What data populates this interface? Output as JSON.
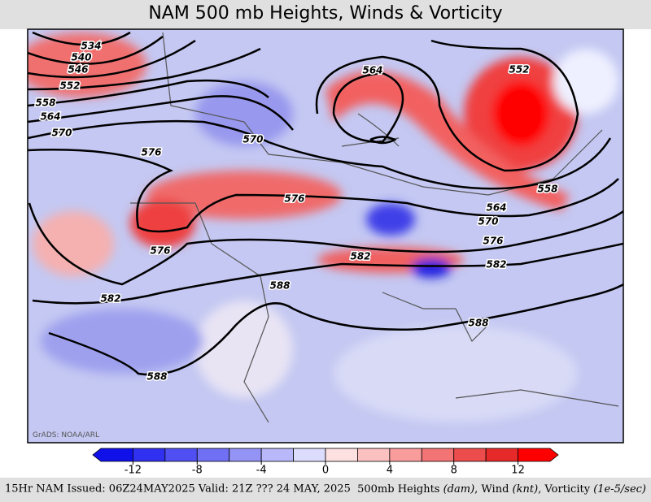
{
  "header": {
    "title": "NAM 500 mb Heights, Winds & Vorticity"
  },
  "map": {
    "credit": "GrADS: NOAA/ARL",
    "contour_labels": [
      "534",
      "540",
      "546",
      "552",
      "558",
      "564",
      "570",
      "576",
      "570",
      "564",
      "552",
      "558",
      "564",
      "570",
      "576",
      "582",
      "576",
      "582",
      "576",
      "582",
      "588",
      "588",
      "588"
    ]
  },
  "colorbar": {
    "clim": [
      -14,
      14
    ],
    "ticks": [
      -12,
      -8,
      -4,
      0,
      4,
      8,
      12
    ],
    "colors": [
      "#1010e8",
      "#3030f0",
      "#5050f2",
      "#7070f4",
      "#9494f6",
      "#b8b8fa",
      "#dcdcfd",
      "#fde0e0",
      "#fbc0c0",
      "#f89c9c",
      "#f27474",
      "#ec4c4c",
      "#e62a2a",
      "#ff0000"
    ]
  },
  "footer": {
    "left": "15Hr NAM Issued: 06Z24MAY2025 Valid: 21Z ??? 24 MAY, 2025",
    "right": [
      "500mb Heights ",
      "(dam)",
      ", Wind ",
      "(knt)",
      ", Vorticity ",
      "(1e-5/sec)"
    ]
  }
}
